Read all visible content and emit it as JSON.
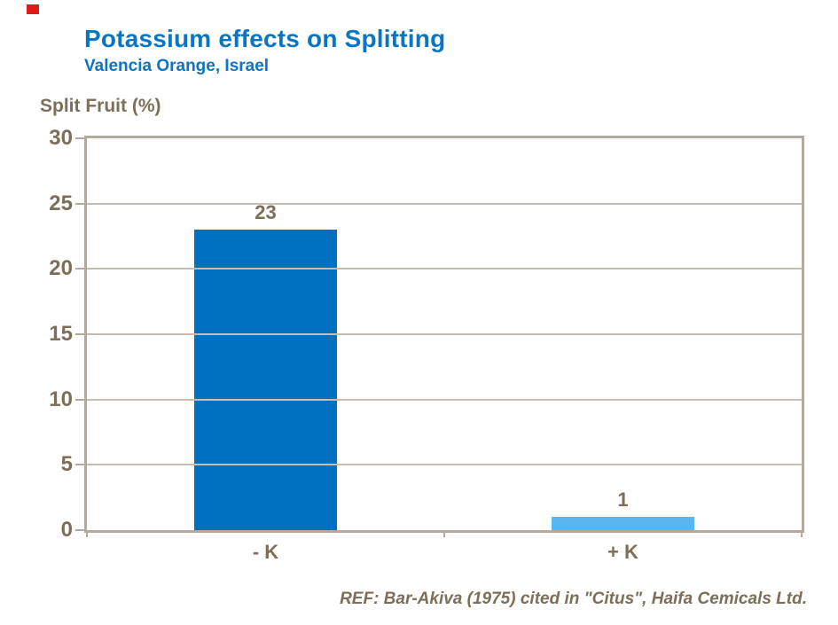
{
  "slide": {
    "title": "Potassium effects on Splitting",
    "subtitle": "Valencia Orange, Israel",
    "footer": "REF: Bar-Akiva (1975) cited in \"Citus\", Haifa Cemicals Ltd."
  },
  "chart_data": {
    "type": "bar",
    "title": "Potassium effects on Splitting",
    "subtitle": "Valencia Orange, Israel",
    "ylabel": "Split Fruit (%)",
    "xlabel": "",
    "categories": [
      "- K",
      "+ K"
    ],
    "values": [
      23,
      1
    ],
    "yticks": [
      0,
      5,
      10,
      15,
      20,
      25,
      30
    ],
    "ylim": [
      0,
      30
    ],
    "grid": true,
    "legend": false,
    "bar_colors": [
      "#0070c0",
      "#5ab6f0"
    ],
    "annotation": "REF: Bar-Akiva (1975) cited in \"Citus\", Haifa Cemicals Ltd."
  },
  "colors": {
    "title_blue": "#0a76c3",
    "text_brown": "#7d6e58",
    "axis_border": "#b3aa9d",
    "gridline": "#c6beb1",
    "bar_dark_blue": "#0070c0",
    "bar_light_blue": "#5ab6f0",
    "corner_red": "#e11b1b",
    "background": "#ffffff"
  }
}
